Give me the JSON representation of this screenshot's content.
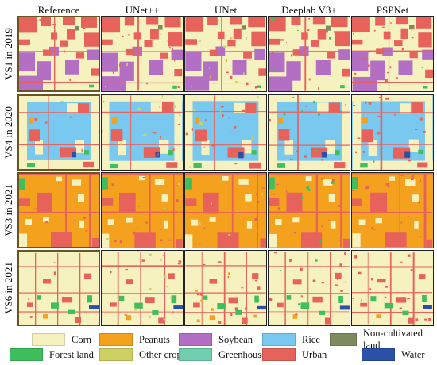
{
  "columns": [
    "Reference",
    "UNet++",
    "UNet",
    "Deeplab V3+",
    "PSPNet"
  ],
  "rows": [
    {
      "label": "VS1 in 2019",
      "scene": "vs1"
    },
    {
      "label": "VS4 in 2020",
      "scene": "vs4"
    },
    {
      "label": "VS3 in 2021",
      "scene": "vs3"
    },
    {
      "label": "VS6 in 2021",
      "scene": "vs6"
    }
  ],
  "legend": [
    {
      "label": "Corn",
      "color": "#f5f2bf"
    },
    {
      "label": "Peanuts",
      "color": "#f4a21e"
    },
    {
      "label": "Soybean",
      "color": "#b36fc4"
    },
    {
      "label": "Rice",
      "color": "#78c8ef"
    },
    {
      "label": "Non-cultivated land",
      "color": "#7d8b5e"
    },
    {
      "label": "Forest land",
      "color": "#3fbf5c"
    },
    {
      "label": "Other crops",
      "color": "#cfd062"
    },
    {
      "label": "Greenhouses",
      "color": "#6fcfb0"
    },
    {
      "label": "Urban",
      "color": "#e8625c"
    },
    {
      "label": "Water",
      "color": "#2a50a8"
    }
  ]
}
